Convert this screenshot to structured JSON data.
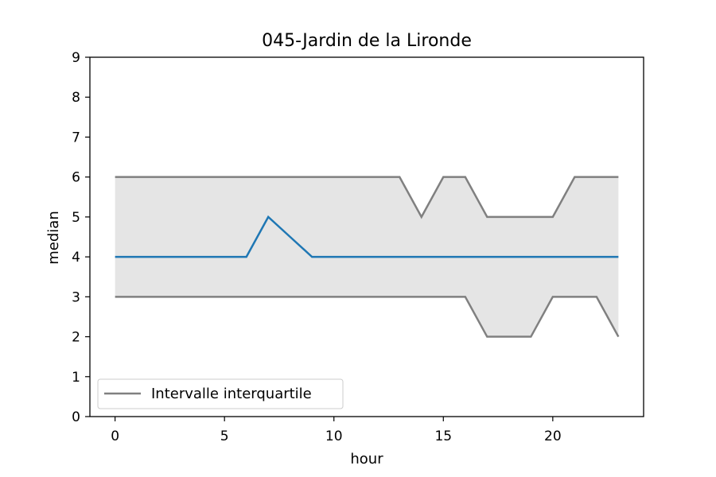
{
  "chart_data": {
    "type": "line",
    "title": "045-Jardin de la Lironde",
    "xlabel": "hour",
    "ylabel": "median",
    "xlim": [
      -1.15,
      24.15
    ],
    "ylim": [
      0,
      9
    ],
    "xticks": [
      0,
      5,
      10,
      15,
      20
    ],
    "yticks": [
      0,
      1,
      2,
      3,
      4,
      5,
      6,
      7,
      8,
      9
    ],
    "grid": false,
    "legend": {
      "position": "lower-left",
      "entries": [
        "Intervalle interquartile"
      ]
    },
    "x": [
      0,
      1,
      2,
      3,
      4,
      5,
      6,
      7,
      8,
      9,
      10,
      11,
      12,
      13,
      14,
      15,
      16,
      17,
      18,
      19,
      20,
      21,
      22,
      23
    ],
    "series": [
      {
        "role": "median",
        "color": "#1f77b4",
        "values": [
          4,
          4,
          4,
          4,
          4,
          4,
          4,
          5,
          4.5,
          4,
          4,
          4,
          4,
          4,
          4,
          4,
          4,
          4,
          4,
          4,
          4,
          4,
          4,
          4
        ]
      },
      {
        "role": "upper-quartile",
        "name": "Intervalle interquartile",
        "color": "#808080",
        "values": [
          6,
          6,
          6,
          6,
          6,
          6,
          6,
          6,
          6,
          6,
          6,
          6,
          6,
          6,
          5,
          6,
          6,
          5,
          5,
          5,
          5,
          6,
          6,
          6
        ]
      },
      {
        "role": "lower-quartile",
        "color": "#808080",
        "values": [
          3,
          3,
          3,
          3,
          3,
          3,
          3,
          3,
          3,
          3,
          3,
          3,
          3,
          3,
          3,
          3,
          3,
          2,
          2,
          2,
          3,
          3,
          3,
          2
        ]
      }
    ],
    "band_color": "#e5e5e5"
  }
}
